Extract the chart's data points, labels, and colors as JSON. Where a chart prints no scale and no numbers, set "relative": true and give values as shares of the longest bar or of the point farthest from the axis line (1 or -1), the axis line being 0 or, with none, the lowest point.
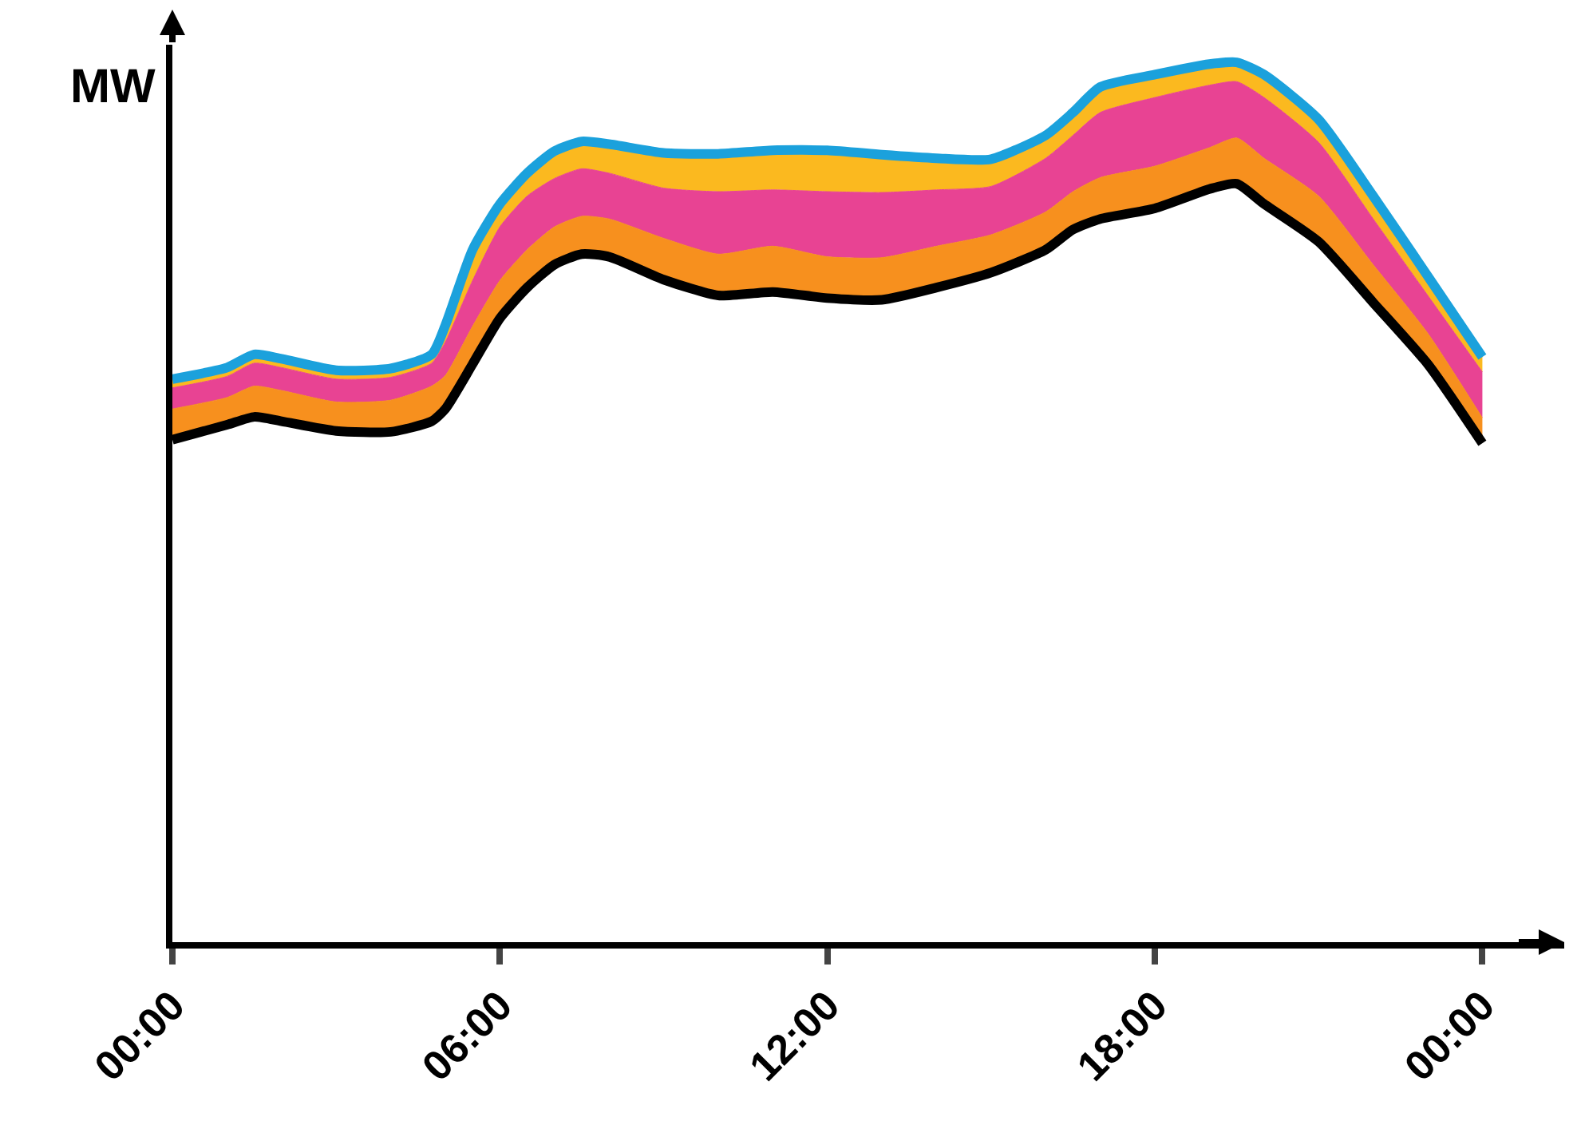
{
  "chart_data": {
    "type": "area",
    "relative": true,
    "ylabel": "MW",
    "marker": "none",
    "x": [
      0,
      1,
      1.5,
      2,
      3,
      4,
      4.75,
      5,
      5.5,
      6,
      6.5,
      7,
      7.5,
      8,
      9,
      10,
      11,
      12,
      13,
      14,
      15,
      16,
      16.5,
      17,
      18,
      19,
      19.5,
      20,
      21,
      22,
      23,
      24
    ],
    "xlim": [
      0,
      25.5
    ],
    "xticks": [
      {
        "value": 0,
        "label": "00:00"
      },
      {
        "value": 6,
        "label": "06:00"
      },
      {
        "value": 12,
        "label": "12:00"
      },
      {
        "value": 18,
        "label": "18:00"
      },
      {
        "value": 24,
        "label": "00:00"
      }
    ],
    "series": [
      {
        "type": "line",
        "color": "#000000",
        "values": [
          0.571,
          0.588,
          0.597,
          0.592,
          0.581,
          0.58,
          0.592,
          0.606,
          0.657,
          0.709,
          0.744,
          0.77,
          0.782,
          0.779,
          0.753,
          0.735,
          0.739,
          0.732,
          0.73,
          0.744,
          0.761,
          0.787,
          0.81,
          0.822,
          0.834,
          0.856,
          0.862,
          0.839,
          0.796,
          0.727,
          0.657,
          0.567
        ]
      },
      {
        "color": "#f7901e",
        "values": [
          0.606,
          0.619,
          0.632,
          0.627,
          0.614,
          0.616,
          0.632,
          0.644,
          0.7,
          0.752,
          0.787,
          0.813,
          0.825,
          0.822,
          0.8,
          0.782,
          0.791,
          0.779,
          0.778,
          0.791,
          0.804,
          0.83,
          0.853,
          0.869,
          0.882,
          0.903,
          0.914,
          0.891,
          0.848,
          0.77,
          0.692,
          0.596
        ]
      },
      {
        "color": "#e84393",
        "values": [
          0.63,
          0.643,
          0.658,
          0.653,
          0.64,
          0.642,
          0.658,
          0.682,
          0.752,
          0.813,
          0.848,
          0.868,
          0.879,
          0.874,
          0.857,
          0.853,
          0.855,
          0.853,
          0.852,
          0.855,
          0.859,
          0.891,
          0.917,
          0.943,
          0.96,
          0.974,
          0.978,
          0.96,
          0.909,
          0.822,
          0.735,
          0.648
        ]
      },
      {
        "color": "#fbb91f",
        "values": [
          0.64,
          0.653,
          0.668,
          0.663,
          0.65,
          0.652,
          0.668,
          0.701,
          0.787,
          0.839,
          0.874,
          0.899,
          0.91,
          0.907,
          0.897,
          0.896,
          0.9,
          0.9,
          0.895,
          0.891,
          0.89,
          0.917,
          0.943,
          0.972,
          0.986,
          0.998,
          1.0,
          0.986,
          0.935,
          0.848,
          0.757,
          0.665
        ]
      },
      {
        "type": "line",
        "color": "#1ba1dc",
        "values": [
          0.64,
          0.653,
          0.668,
          0.663,
          0.65,
          0.652,
          0.668,
          0.701,
          0.787,
          0.839,
          0.874,
          0.899,
          0.91,
          0.907,
          0.897,
          0.896,
          0.9,
          0.9,
          0.895,
          0.891,
          0.89,
          0.917,
          0.943,
          0.972,
          0.986,
          0.998,
          1.0,
          0.986,
          0.935,
          0.848,
          0.757,
          0.665
        ]
      }
    ]
  }
}
